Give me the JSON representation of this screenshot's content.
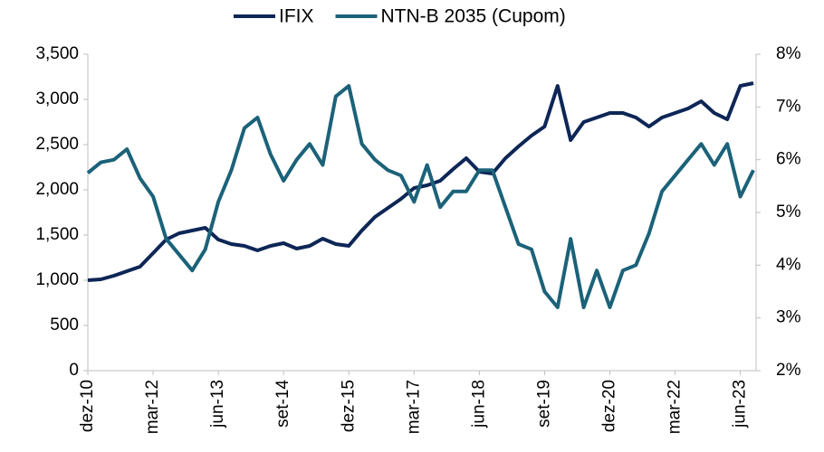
{
  "chart_data": {
    "type": "line",
    "categories": [
      "dez-10",
      null,
      null,
      null,
      null,
      "mar-12",
      null,
      null,
      null,
      null,
      "jun-13",
      null,
      null,
      null,
      null,
      "set-14",
      null,
      null,
      null,
      null,
      "dez-15",
      null,
      null,
      null,
      null,
      "mar-17",
      null,
      null,
      null,
      null,
      "jun-18",
      null,
      null,
      null,
      null,
      "set-19",
      null,
      null,
      null,
      null,
      "dez-20",
      null,
      null,
      null,
      null,
      "mar-22",
      null,
      null,
      null,
      null,
      "jun-23",
      null
    ],
    "series": [
      {
        "name": "IFIX",
        "color": "#0d2656",
        "axis": "y",
        "values": [
          1000,
          1010,
          1050,
          1100,
          1150,
          1300,
          1450,
          1520,
          1550,
          1580,
          1450,
          1400,
          1380,
          1330,
          1380,
          1410,
          1350,
          1380,
          1460,
          1400,
          1380,
          1550,
          1700,
          1800,
          1900,
          2020,
          2050,
          2100,
          2230,
          2350,
          2200,
          2180,
          2350,
          2480,
          2600,
          2700,
          3150,
          2550,
          2750,
          2800,
          2850,
          2850,
          2800,
          2700,
          2800,
          2850,
          2900,
          2980,
          2850,
          2780,
          3150,
          3180
        ]
      },
      {
        "name": "NTN-B 2035 (Cupom)",
        "color": "#1b6279",
        "axis": "y2",
        "values": [
          5.75,
          5.95,
          6.0,
          6.2,
          5.65,
          5.3,
          4.5,
          4.2,
          3.9,
          4.3,
          5.2,
          5.8,
          6.6,
          6.8,
          6.1,
          5.6,
          6.0,
          6.3,
          5.9,
          7.2,
          7.4,
          6.3,
          6.0,
          5.8,
          5.7,
          5.2,
          5.9,
          5.1,
          5.4,
          5.4,
          5.8,
          5.8,
          5.1,
          4.4,
          4.3,
          3.5,
          3.2,
          4.5,
          3.2,
          3.9,
          3.2,
          3.9,
          4.0,
          4.6,
          5.4,
          5.7,
          6.0,
          6.3,
          5.9,
          6.3,
          5.3,
          5.8
        ]
      }
    ],
    "ylim": [
      0,
      3500
    ],
    "yticks": [
      0,
      500,
      {
        "value": 1000,
        "label": "1,000"
      },
      {
        "value": 1500,
        "label": "1,500"
      },
      {
        "value": 2000,
        "label": "2,000"
      },
      {
        "value": 2500,
        "label": "2,500"
      },
      {
        "value": 3000,
        "label": "3,000"
      },
      {
        "value": 3500,
        "label": "3,500"
      }
    ],
    "y2lim": [
      2,
      8
    ],
    "y2ticks": [
      {
        "value": 2,
        "label": "2%"
      },
      {
        "value": 3,
        "label": "3%"
      },
      {
        "value": 4,
        "label": "4%"
      },
      {
        "value": 5,
        "label": "5%"
      },
      {
        "value": 6,
        "label": "6%"
      },
      {
        "value": 7,
        "label": "7%"
      },
      {
        "value": 8,
        "label": "8%"
      }
    ],
    "grid": false,
    "legend": "top"
  }
}
